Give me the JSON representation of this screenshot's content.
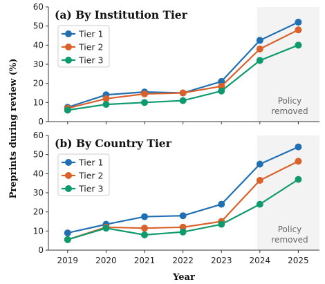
{
  "chart_data": {
    "type": "line",
    "ylabel": "Preprints during review (%)",
    "xlabel": "Year",
    "x": [
      2019,
      2020,
      2021,
      2022,
      2023,
      2024,
      2025
    ],
    "ylim": [
      0,
      60
    ],
    "yticks": [
      0,
      10,
      20,
      30,
      40,
      50,
      60
    ],
    "shaded_region": {
      "from": 2024,
      "to": 2025,
      "label_line1": "Policy",
      "label_line2": "removed"
    },
    "colors": {
      "Tier 1": "#1f6fb2",
      "Tier 2": "#d9622b",
      "Tier 3": "#0f9a6e"
    },
    "panels": [
      {
        "title": "(a) By Institution Tier",
        "series": [
          {
            "name": "Tier 1",
            "values": [
              7.5,
              14,
              15.5,
              15,
              21,
              42.5,
              52
            ]
          },
          {
            "name": "Tier 2",
            "values": [
              7,
              12,
              14.5,
              15,
              18.5,
              38,
              48
            ]
          },
          {
            "name": "Tier 3",
            "values": [
              6,
              9,
              10,
              11,
              16,
              32,
              40
            ]
          }
        ]
      },
      {
        "title": "(b) By Country Tier",
        "series": [
          {
            "name": "Tier 1",
            "values": [
              9,
              13.5,
              17.5,
              18,
              24,
              45,
              54
            ]
          },
          {
            "name": "Tier 2",
            "values": [
              5.5,
              12,
              11.5,
              12,
              15,
              36.5,
              46.5
            ]
          },
          {
            "name": "Tier 3",
            "values": [
              5.5,
              11.5,
              8,
              9.5,
              13.5,
              24,
              37
            ]
          }
        ]
      }
    ]
  }
}
